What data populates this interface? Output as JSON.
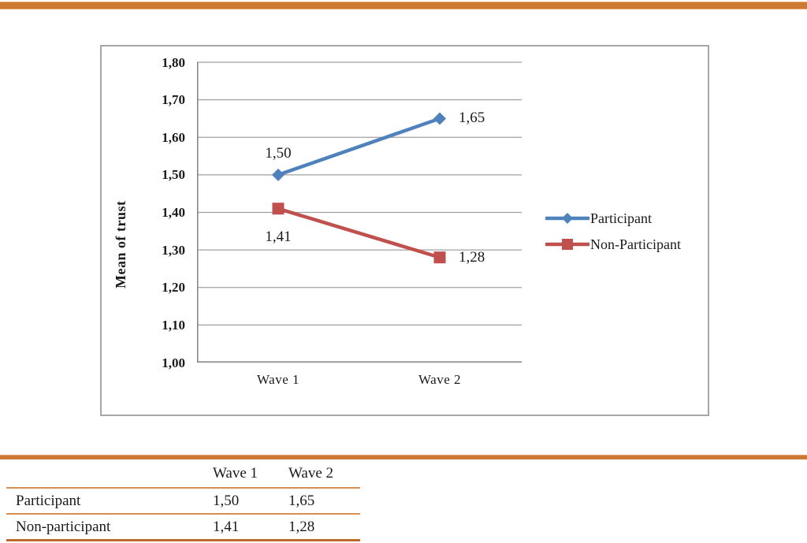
{
  "colors": {
    "accent_orange": "#cc7a33",
    "table_line_orange": "#d98e55",
    "table_bottom_orange": "#c06a2e",
    "gridline_gray": "#a0a0a0",
    "axis_gray": "#808080",
    "frame_gray": "#a6a6a6"
  },
  "chart_data": {
    "type": "line",
    "title": "",
    "xlabel": "",
    "ylabel": "Mean of trust",
    "categories": [
      "Wave 1",
      "Wave 2"
    ],
    "ylim": [
      1.0,
      1.8
    ],
    "ytick_step": 0.1,
    "ytick_labels": [
      "1,00",
      "1,10",
      "1,20",
      "1,30",
      "1,40",
      "1,50",
      "1,60",
      "1,70",
      "1,80"
    ],
    "grid": "horizontal",
    "legend_position": "right",
    "series": [
      {
        "name": "Participant",
        "color": "#4f81bd",
        "marker": "diamond",
        "values": [
          1.5,
          1.65
        ],
        "value_labels": [
          "1,50",
          "1,65"
        ],
        "label_placement": [
          "above",
          "right"
        ]
      },
      {
        "name": "Non-Participant",
        "color": "#c0504d",
        "marker": "square",
        "values": [
          1.41,
          1.28
        ],
        "value_labels": [
          "1,41",
          "1,28"
        ],
        "label_placement": [
          "below",
          "right"
        ]
      }
    ]
  },
  "table": {
    "col_headers": [
      "Wave 1",
      "Wave 2"
    ],
    "rows": [
      {
        "label": "Participant",
        "values": [
          "1,50",
          "1,65"
        ]
      },
      {
        "label": "Non-participant",
        "values": [
          "1,41",
          "1,28"
        ]
      }
    ]
  }
}
